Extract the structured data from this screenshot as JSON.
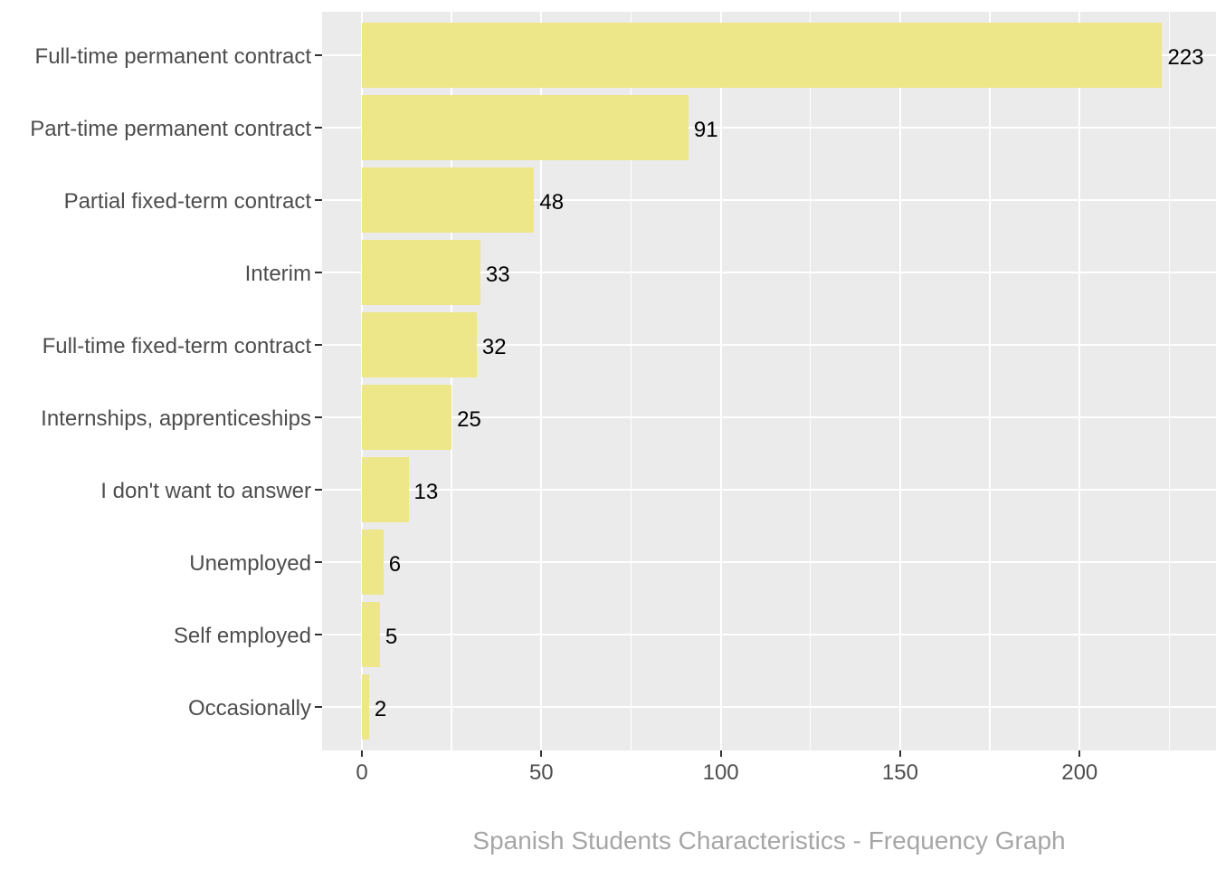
{
  "chart_data": {
    "type": "bar",
    "orientation": "horizontal",
    "title": "Spanish Students Characteristics - Frequency Graph",
    "categories": [
      "Full-time permanent contract",
      "Part-time permanent contract",
      "Partial fixed-term contract",
      "Interim",
      "Full-time fixed-term contract",
      "Internships, apprenticeships",
      "I don't want to answer",
      "Unemployed",
      "Self employed",
      "Occasionally"
    ],
    "values": [
      223,
      91,
      48,
      33,
      32,
      25,
      13,
      6,
      5,
      2
    ],
    "value_labels": [
      "223",
      "91",
      "48",
      "33",
      "32",
      "25",
      "13",
      "6",
      "5",
      "2"
    ],
    "xlabel": "Spanish Students Characteristics - Frequency Graph",
    "ylabel": "",
    "x_ticks": [
      0,
      50,
      100,
      150,
      200
    ],
    "x_minor_ticks": [
      25,
      75,
      125,
      175,
      225
    ],
    "xlim": [
      -11.1,
      238.1
    ],
    "grid": "white major and minor gridlines on gray panel",
    "legend": "none",
    "colors": {
      "bar_fill": "#EDE78A",
      "panel_background": "#EBEBEB",
      "gridline": "#FFFFFF",
      "axis_text": "#4D4D4D",
      "tick_mark": "#333333",
      "value_label": "#000000",
      "title_text": "#A6A6A6",
      "figure_background": "#FFFFFF"
    }
  }
}
